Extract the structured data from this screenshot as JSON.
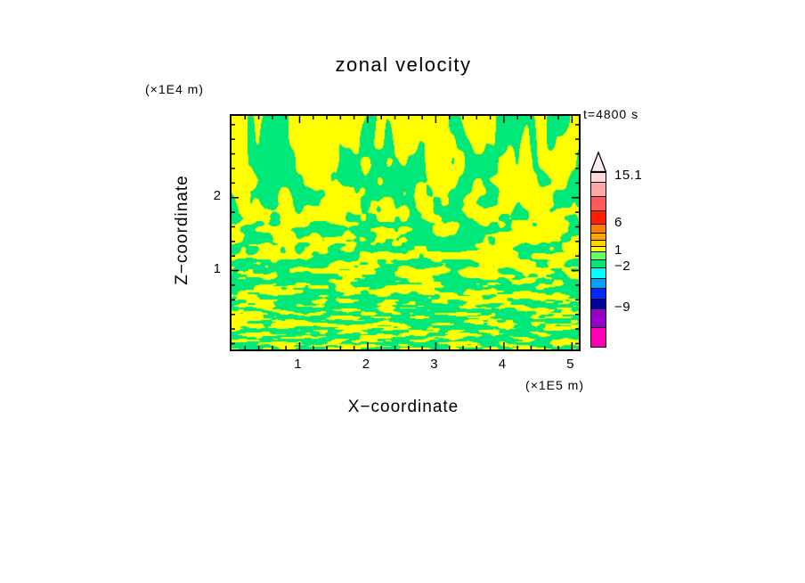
{
  "title": "zonal velocity",
  "annotations": {
    "time": "t=4800 s",
    "z_units": "(×1E4 m)",
    "x_units": "(×1E5 m)"
  },
  "axes": {
    "x": {
      "label": "X−coordinate",
      "min": 0,
      "max": 5.1,
      "major_ticks": [
        1,
        2,
        3,
        4,
        5
      ],
      "minor_step": 0.2
    },
    "z": {
      "label": "Z−coordinate",
      "min": -0.08,
      "max": 3.12,
      "major_ticks": [
        1,
        2
      ],
      "minor_step": 0.2
    }
  },
  "colorbar": {
    "tip_color": "#FFECEC",
    "segments": [
      {
        "h": 10,
        "color": "#FFD9D9"
      },
      {
        "h": 16,
        "color": "#FFA6A6"
      },
      {
        "h": 16,
        "color": "#FF5A5A"
      },
      {
        "h": 15,
        "color": "#FF1E00"
      },
      {
        "h": 10,
        "color": "#FF7D00"
      },
      {
        "h": 8,
        "color": "#FFA500"
      },
      {
        "h": 7,
        "color": "#FFD200"
      },
      {
        "h": 6,
        "color": "#FFFF00"
      },
      {
        "h": 9,
        "color": "#64FF64"
      },
      {
        "h": 9,
        "color": "#00E87A"
      },
      {
        "h": 12,
        "color": "#00FFFF"
      },
      {
        "h": 11,
        "color": "#00A0FF"
      },
      {
        "h": 12,
        "color": "#0028FF"
      },
      {
        "h": 11,
        "color": "#000096"
      },
      {
        "h": 21,
        "color": "#9600C8"
      },
      {
        "h": 22,
        "color": "#FF00B4"
      }
    ],
    "labels": [
      {
        "text": "15.1",
        "y": 197
      },
      {
        "text": "6",
        "y": 250
      },
      {
        "text": "1",
        "y": 281
      },
      {
        "text": "−2",
        "y": 299
      },
      {
        "text": "−9",
        "y": 345
      }
    ]
  },
  "chart_data": {
    "type": "heatmap",
    "subtype": "filled_contour",
    "title": "zonal velocity",
    "xlabel": "X−coordinate",
    "ylabel": "Z−coordinate",
    "x_units_multiplier": "×1E5 m",
    "z_units_multiplier": "×1E4 m",
    "x_range": [
      0,
      5.1
    ],
    "z_range": [
      -0.08,
      3.12
    ],
    "time_s": 4800,
    "contour_levels": [
      -9,
      -2,
      1,
      6,
      15.1
    ],
    "field_colors": {
      "yellow": "#FFFF00",
      "green": "#00E87A"
    },
    "field_summary": "Turbulent zonal-velocity field rendered as interleaved vertical streaks: yellow regions fall in the 1 to 6 band, green regions in the −2 to 1 band; broad vertical streaks aloft transition to fine-scale mixing near the lower boundary.",
    "pattern": {
      "seed1": 7,
      "seed2": 13,
      "fx1": 0.052,
      "fx2": 0.11,
      "fz0": 0.012,
      "fz1": 0.1,
      "fzPow": 2.2,
      "fzMul": 2.1,
      "w1": 0.62,
      "w2": 0.38,
      "thr0": 0.465,
      "thrSlope": 0.07
    }
  }
}
